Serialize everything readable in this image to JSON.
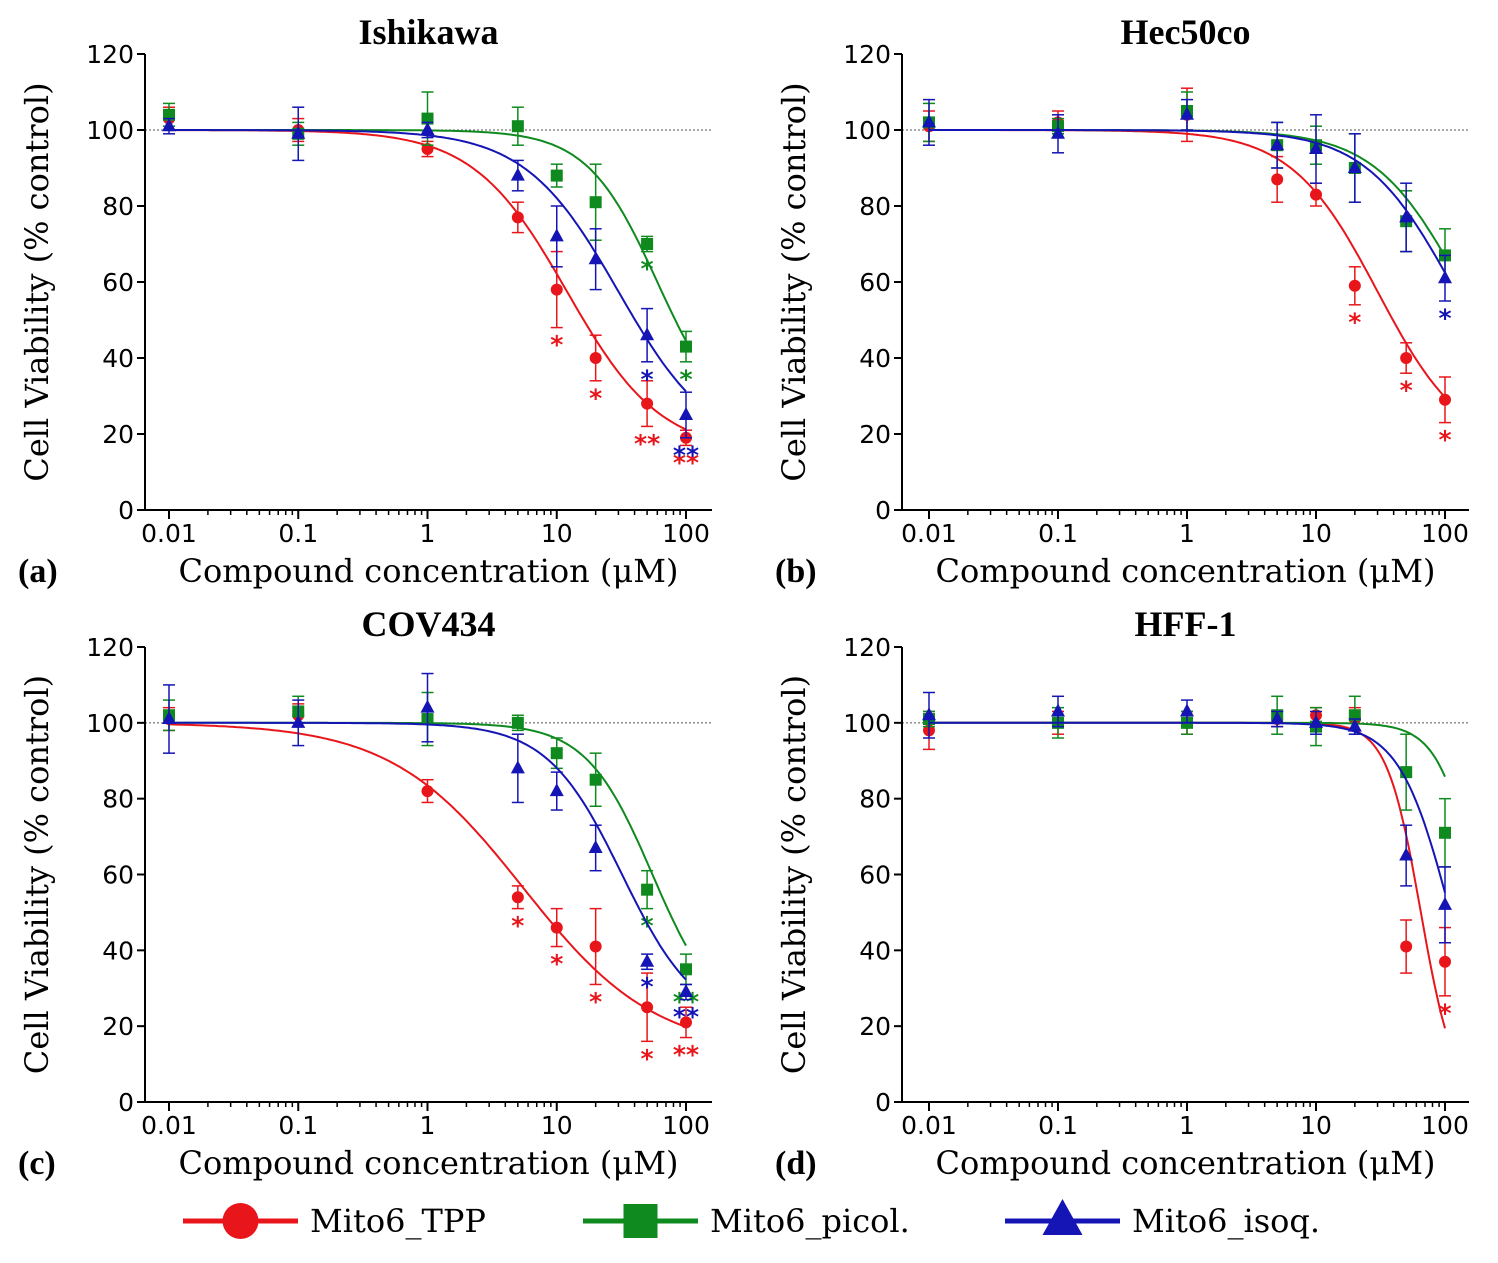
{
  "chart_data": [
    {
      "type": "scatter",
      "panel_label": "(a)",
      "title": "Ishikawa",
      "xlabel": "Compound concentration (μM)",
      "ylabel": "Cell Viability (% control)",
      "xscale": "log",
      "xlim": [
        0.01,
        100
      ],
      "ylim": [
        0,
        120
      ],
      "xticks": [
        "0.01",
        "0.1",
        "1",
        "10",
        "100"
      ],
      "yticks": [
        "0",
        "20",
        "40",
        "60",
        "80",
        "100",
        "120"
      ],
      "reference_line": 100,
      "x": [
        0.01,
        0.1,
        1,
        5,
        10,
        20,
        50,
        100
      ],
      "series": [
        {
          "name": "Mito6_TPP",
          "color": "#e8161b",
          "marker": "circle",
          "values": [
            103,
            100,
            95,
            77,
            58,
            40,
            28,
            19
          ],
          "errors": [
            3,
            3,
            2,
            4,
            10,
            6,
            6,
            2
          ],
          "significance": [
            "",
            "",
            "",
            "",
            "*",
            "*",
            "**",
            "**"
          ],
          "fit": {
            "top": 100,
            "bottom": 15,
            "ic50": 12,
            "hill": 1.2
          }
        },
        {
          "name": "Mito6_picol.",
          "color": "#0f8a1f",
          "marker": "square",
          "values": [
            104,
            99,
            103,
            101,
            88,
            81,
            70,
            43
          ],
          "errors": [
            3,
            3,
            7,
            5,
            3,
            10,
            2,
            4
          ],
          "significance": [
            "",
            "",
            "",
            "",
            "",
            "",
            "*",
            "*"
          ],
          "fit": {
            "top": 100,
            "bottom": 20,
            "ic50": 60,
            "hill": 1.6
          }
        },
        {
          "name": "Mito6_isoq.",
          "color": "#1515b5",
          "marker": "triangle",
          "values": [
            101,
            99,
            100,
            88,
            72,
            66,
            46,
            25
          ],
          "errors": [
            2,
            7,
            2,
            4,
            8,
            8,
            7,
            6
          ],
          "significance": [
            "",
            "",
            "",
            "",
            "",
            "",
            "*",
            "**"
          ],
          "fit": {
            "top": 100,
            "bottom": 15,
            "ic50": 30,
            "hill": 1.2
          }
        }
      ]
    },
    {
      "type": "scatter",
      "panel_label": "(b)",
      "title": "Hec50co",
      "xlabel": "Compound concentration (μM)",
      "ylabel": "Cell Viability (% control)",
      "xscale": "log",
      "xlim": [
        0.01,
        100
      ],
      "ylim": [
        0,
        120
      ],
      "xticks": [
        "0.01",
        "0.1",
        "1",
        "10",
        "100"
      ],
      "yticks": [
        "0",
        "20",
        "40",
        "60",
        "80",
        "100",
        "120"
      ],
      "reference_line": 100,
      "x": [
        0.01,
        0.1,
        1,
        5,
        10,
        20,
        50,
        100
      ],
      "series": [
        {
          "name": "Mito6_TPP",
          "color": "#e8161b",
          "marker": "circle",
          "values": [
            101,
            102,
            104,
            87,
            83,
            59,
            40,
            29
          ],
          "errors": [
            4,
            3,
            7,
            6,
            3,
            5,
            4,
            6
          ],
          "significance": [
            "",
            "",
            "",
            "",
            "",
            "*",
            "*",
            "*"
          ],
          "fit": {
            "top": 100,
            "bottom": 15,
            "ic50": 30,
            "hill": 1.3
          }
        },
        {
          "name": "Mito6_picol.",
          "color": "#0f8a1f",
          "marker": "square",
          "values": [
            102,
            101,
            105,
            96,
            96,
            90,
            76,
            67
          ],
          "errors": [
            5,
            2,
            5,
            6,
            5,
            9,
            8,
            7
          ],
          "significance": [
            "",
            "",
            "",
            "",
            "",
            "",
            "",
            ""
          ],
          "fit": {
            "top": 100,
            "bottom": 20,
            "ic50": 130,
            "hill": 1.3
          }
        },
        {
          "name": "Mito6_isoq.",
          "color": "#1515b5",
          "marker": "triangle",
          "values": [
            102,
            99,
            104,
            96,
            95,
            90,
            77,
            61
          ],
          "errors": [
            6,
            5,
            4,
            6,
            9,
            9,
            9,
            6
          ],
          "significance": [
            "",
            "",
            "",
            "",
            "",
            "",
            "",
            "*"
          ],
          "fit": {
            "top": 100,
            "bottom": 20,
            "ic50": 110,
            "hill": 1.3
          }
        }
      ]
    },
    {
      "type": "scatter",
      "panel_label": "(c)",
      "title": "COV434",
      "xlabel": "Compound concentration (μM)",
      "ylabel": "Cell Viability (% control)",
      "xscale": "log",
      "xlim": [
        0.01,
        100
      ],
      "ylim": [
        0,
        120
      ],
      "xticks": [
        "0.01",
        "0.1",
        "1",
        "10",
        "100"
      ],
      "yticks": [
        "0",
        "20",
        "40",
        "60",
        "80",
        "100",
        "120"
      ],
      "reference_line": 100,
      "x": [
        0.01,
        0.1,
        1,
        5,
        10,
        20,
        50,
        100
      ],
      "series": [
        {
          "name": "Mito6_TPP",
          "color": "#e8161b",
          "marker": "circle",
          "values": [
            101,
            102,
            82,
            54,
            46,
            41,
            25,
            21
          ],
          "errors": [
            3,
            3,
            3,
            3,
            5,
            10,
            9,
            4
          ],
          "significance": [
            "",
            "",
            "",
            "*",
            "*",
            "*",
            "*",
            "**"
          ],
          "fit": {
            "top": 100,
            "bottom": 13,
            "ic50": 5.5,
            "hill": 0.85
          }
        },
        {
          "name": "Mito6_picol.",
          "color": "#0f8a1f",
          "marker": "square",
          "values": [
            102,
            103,
            101,
            100,
            92,
            85,
            56,
            35
          ],
          "errors": [
            4,
            4,
            7,
            2,
            4,
            7,
            5,
            4
          ],
          "significance": [
            "",
            "",
            "",
            "",
            "",
            "",
            "*",
            "**"
          ],
          "fit": {
            "top": 100,
            "bottom": 20,
            "ic50": 55,
            "hill": 1.7
          }
        },
        {
          "name": "Mito6_isoq.",
          "color": "#1515b5",
          "marker": "triangle",
          "values": [
            101,
            100,
            104,
            88,
            82,
            67,
            37,
            29
          ],
          "errors": [
            9,
            6,
            9,
            9,
            5,
            6,
            2,
            2
          ],
          "significance": [
            "",
            "",
            "",
            "",
            "",
            "",
            "*",
            "**"
          ],
          "fit": {
            "top": 100,
            "bottom": 20,
            "ic50": 32,
            "hill": 1.5
          }
        }
      ]
    },
    {
      "type": "scatter",
      "panel_label": "(d)",
      "title": "HFF-1",
      "xlabel": "Compound concentration (μM)",
      "ylabel": "Cell Viability (% control)",
      "xscale": "log",
      "xlim": [
        0.01,
        100
      ],
      "ylim": [
        0,
        120
      ],
      "xticks": [
        "0.01",
        "0.1",
        "1",
        "10",
        "100"
      ],
      "yticks": [
        "0",
        "20",
        "40",
        "60",
        "80",
        "100",
        "120"
      ],
      "reference_line": 100,
      "x": [
        0.01,
        0.1,
        1,
        5,
        10,
        20,
        50,
        100
      ],
      "series": [
        {
          "name": "Mito6_TPP",
          "color": "#e8161b",
          "marker": "circle",
          "values": [
            98,
            100,
            100,
            101,
            102,
            101,
            41,
            37
          ],
          "errors": [
            5,
            3,
            3,
            2,
            2,
            3,
            7,
            9
          ],
          "significance": [
            "",
            "",
            "",
            "",
            "",
            "",
            "",
            "*"
          ],
          "fit": {
            "top": 100,
            "bottom": 0,
            "ic50": 65,
            "hill": 3.3
          }
        },
        {
          "name": "Mito6_picol.",
          "color": "#0f8a1f",
          "marker": "square",
          "values": [
            101,
            100,
            100,
            102,
            99,
            102,
            87,
            71
          ],
          "errors": [
            2,
            4,
            3,
            5,
            5,
            5,
            10,
            9
          ],
          "significance": [
            "",
            "",
            "",
            "",
            "",
            "",
            "",
            ""
          ],
          "fit": {
            "top": 100,
            "bottom": 0,
            "ic50": 190,
            "hill": 2.8
          }
        },
        {
          "name": "Mito6_isoq.",
          "color": "#1515b5",
          "marker": "triangle",
          "values": [
            102,
            103,
            103,
            101,
            100,
            99,
            65,
            52
          ],
          "errors": [
            6,
            4,
            3,
            2,
            3,
            2,
            8,
            10
          ],
          "significance": [
            "",
            "",
            "",
            "",
            "",
            "",
            "",
            ""
          ],
          "fit": {
            "top": 100,
            "bottom": 0,
            "ic50": 110,
            "hill": 2.2
          }
        }
      ]
    }
  ],
  "legend": {
    "placement": "bottom",
    "items": [
      {
        "label": "Mito6_TPP",
        "color": "#e8161b",
        "marker": "circle"
      },
      {
        "label": "Mito6_picol.",
        "color": "#0f8a1f",
        "marker": "square"
      },
      {
        "label": "Mito6_isoq.",
        "color": "#1515b5",
        "marker": "triangle"
      }
    ]
  }
}
